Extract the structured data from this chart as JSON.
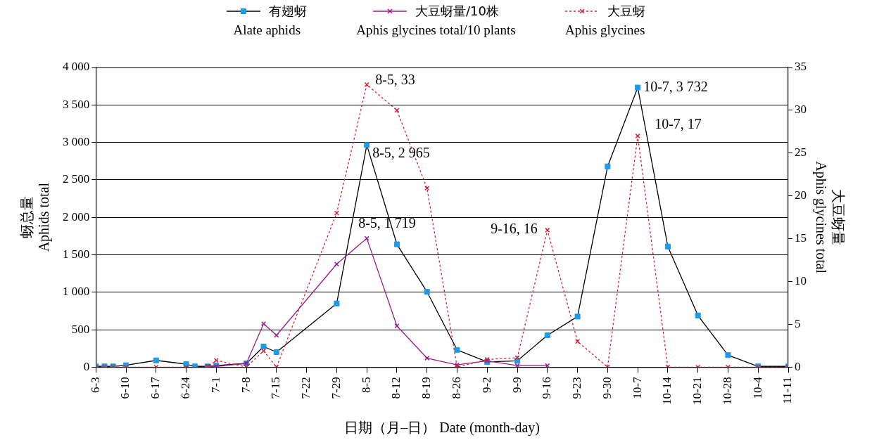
{
  "chart_data": {
    "type": "line",
    "xlabel": "日期（月–日） Date (month-day)",
    "ylabel": "蚜总量\nAphids total",
    "y2label": "大豆蚜量\nAphis glycines total",
    "xlim": [
      "--06-03",
      "--11-11"
    ],
    "xticks": [
      {
        "value": "--06-03",
        "label": "6-3"
      },
      {
        "value": "--06-10",
        "label": "6-10"
      },
      {
        "value": "--06-17",
        "label": "6-17"
      },
      {
        "value": "--06-24",
        "label": "6-24"
      },
      {
        "value": "--07-01",
        "label": "7-1"
      },
      {
        "value": "--07-08",
        "label": "7-8"
      },
      {
        "value": "--07-15",
        "label": "7-15"
      },
      {
        "value": "--07-22",
        "label": "7-22"
      },
      {
        "value": "--07-29",
        "label": "7-29"
      },
      {
        "value": "--08-05",
        "label": "8-5"
      },
      {
        "value": "--08-12",
        "label": "8-12"
      },
      {
        "value": "--08-19",
        "label": "8-19"
      },
      {
        "value": "--08-26",
        "label": "8-26"
      },
      {
        "value": "--09-02",
        "label": "9-2"
      },
      {
        "value": "--09-09",
        "label": "9-9"
      },
      {
        "value": "--09-16",
        "label": "9-16"
      },
      {
        "value": "--09-23",
        "label": "9-23"
      },
      {
        "value": "--09-30",
        "label": "9-30"
      },
      {
        "value": "--10-07",
        "label": "10-7"
      },
      {
        "value": "--10-14",
        "label": "10-14"
      },
      {
        "value": "--10-21",
        "label": "10-21"
      },
      {
        "value": "--10-28",
        "label": "10-28"
      },
      {
        "value": "--11-04",
        "label": "10-4"
      },
      {
        "value": "--11-11",
        "label": "11-11"
      }
    ],
    "ylim": [
      0,
      4000
    ],
    "yticks": [
      0,
      500,
      {
        "value": 1000,
        "label": "1 000"
      },
      {
        "value": 1500,
        "label": "1 500"
      },
      {
        "value": 2000,
        "label": "2 000"
      },
      {
        "value": 2500,
        "label": "2 500"
      },
      {
        "value": 3000,
        "label": "3 000"
      },
      {
        "value": 3500,
        "label": "3 500"
      },
      {
        "value": 4000,
        "label": "4 000"
      }
    ],
    "y2lim": [
      0,
      35
    ],
    "y2ticks": [
      0,
      5,
      10,
      15,
      20,
      25,
      30,
      35
    ],
    "grid": "y",
    "legend": "top",
    "series": [
      {
        "name": "有翅蚜\nAlate aphids",
        "color": "#000000",
        "marker": "square",
        "line_style": "solid",
        "x": [
          "--06-03",
          "--06-05",
          "--06-07",
          "--06-10",
          "--06-17",
          "--06-24",
          "--06-26",
          "--06-29",
          "--07-01",
          "--07-08",
          "--07-12",
          "--07-15",
          "--07-29",
          "--08-05",
          "--08-12",
          "--08-19",
          "--08-26",
          "--09-02",
          "--09-09",
          "--09-16",
          "--09-23",
          "--09-30",
          "--10-07",
          "--10-14",
          "--10-21",
          "--10-28",
          "--11-04",
          "--11-11"
        ],
        "values": [
          10,
          10,
          10,
          25,
          90,
          40,
          10,
          10,
          20,
          50,
          275,
          200,
          850,
          2965,
          1640,
          1005,
          230,
          70,
          85,
          425,
          675,
          2680,
          3732,
          1610,
          690,
          160,
          10,
          10
        ],
        "colors": [
          "#1e9be8",
          "#1e9be8",
          "#1e9be8",
          "#1e9be8",
          "#1e9be8",
          "#1e9be8",
          "#1e9be8",
          "#1e9be8",
          "#1e9be8",
          "#1e9be8",
          "#1e9be8",
          "#1e9be8",
          "#1e9be8",
          "#1e9be8",
          "#1e9be8",
          "#1e9be8",
          "#1e9be8",
          "#1e9be8",
          "#1e9be8",
          "#1e9be8",
          "#1e9be8",
          "#1e9be8",
          "#1e9be8",
          "#1e9be8",
          "#1e9be8",
          "#1e9be8",
          "#1e9be8",
          "#1e9be8"
        ],
        "value_labels": [
          null,
          null,
          null,
          null,
          null,
          null,
          null,
          null,
          null,
          null,
          null,
          null,
          null,
          "8-5, 2 965",
          null,
          null,
          null,
          null,
          null,
          null,
          null,
          null,
          "10-7, 3 732",
          null,
          null,
          null,
          null,
          null
        ]
      },
      {
        "name": "大豆蚜量/10株\nAphis glycines total/10 plants",
        "color": "#9b1b8e",
        "marker": "cross",
        "line_style": "solid",
        "x": [
          "--06-29",
          "--07-01",
          "--07-08",
          "--07-12",
          "--07-15",
          "--07-29",
          "--08-05",
          "--08-12",
          "--08-19",
          "--08-26",
          "--09-02",
          "--09-09",
          "--09-16"
        ],
        "values": [
          10,
          10,
          50,
          580,
          425,
          1375,
          1719,
          550,
          120,
          30,
          85,
          20,
          20
        ],
        "value_labels": [
          null,
          null,
          null,
          null,
          null,
          null,
          "8-5, 1 719",
          null,
          null,
          null,
          null,
          null,
          null
        ]
      },
      {
        "name": "大豆蚜\nAphis glycines",
        "color": "#d9203a",
        "marker": "cross",
        "line_style": "dotted",
        "axis": "y2",
        "x": [
          "--06-03",
          "--06-05",
          "--06-07",
          "--06-10",
          "--06-17",
          "--06-24",
          "--06-29",
          "--07-01",
          "--07-08",
          "--07-12",
          "--07-15",
          "--07-29",
          "--08-05",
          "--08-12",
          "--08-19",
          "--08-26",
          "--09-02",
          "--09-09",
          "--09-16",
          "--09-23",
          "--09-30",
          "--10-07",
          "--10-14",
          "--10-21",
          "--10-28",
          "--11-04",
          "--11-11"
        ],
        "values": [
          0,
          0,
          0,
          0,
          0,
          0,
          0,
          0.8,
          0,
          1.9,
          0,
          18,
          33,
          30,
          20.9,
          0,
          0.9,
          1.1,
          16,
          3,
          0,
          27,
          0,
          0,
          0,
          0,
          0
        ],
        "value_labels": [
          null,
          null,
          null,
          null,
          null,
          null,
          null,
          null,
          null,
          null,
          null,
          null,
          "8-5, 33",
          null,
          null,
          null,
          null,
          null,
          "9-16, 16",
          null,
          null,
          "10-7, 17",
          null,
          null,
          null,
          null,
          null
        ]
      }
    ]
  }
}
